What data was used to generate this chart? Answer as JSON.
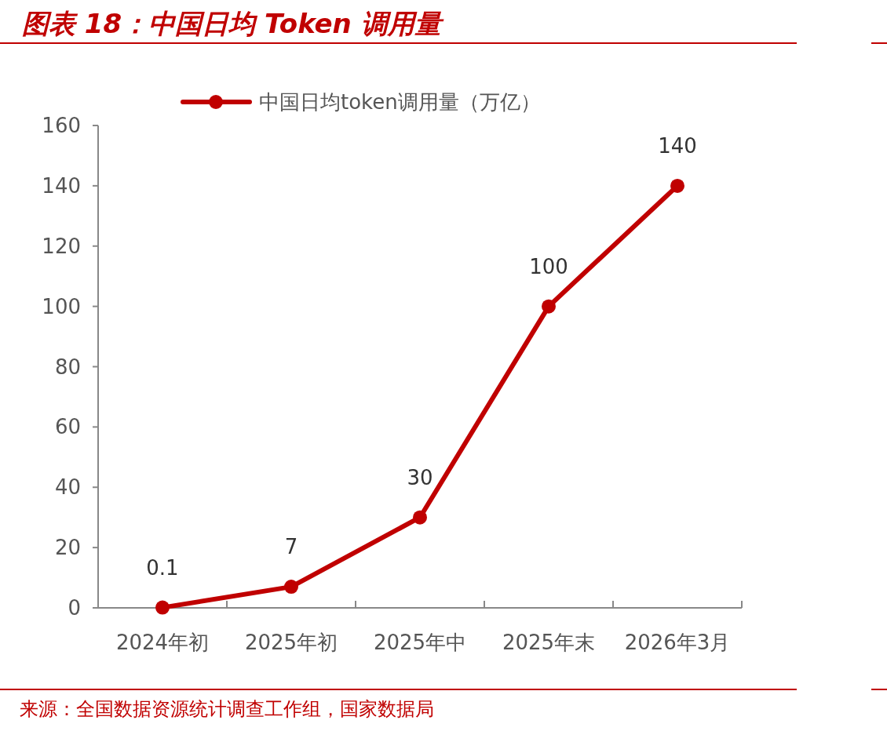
{
  "chart_data": {
    "type": "line",
    "title": "图表 18：中国日均 Token 调用量",
    "categories": [
      "2024年初",
      "2025年初",
      "2025年中",
      "2025年末",
      "2026年3月"
    ],
    "series": [
      {
        "name": "中国日均token调用量（万亿）",
        "color": "#c00000",
        "values": [
          0.1,
          7,
          30,
          100,
          140
        ]
      }
    ],
    "ylim": [
      0,
      160
    ],
    "yticks": [
      0,
      20,
      40,
      60,
      80,
      100,
      120,
      140,
      160
    ],
    "data_labels": true,
    "legend": "top",
    "marker": "circle",
    "line_style": "solid",
    "grid": false,
    "annotations": [
      "来源：全国数据资源统计调查工作组，国家数据局"
    ]
  }
}
